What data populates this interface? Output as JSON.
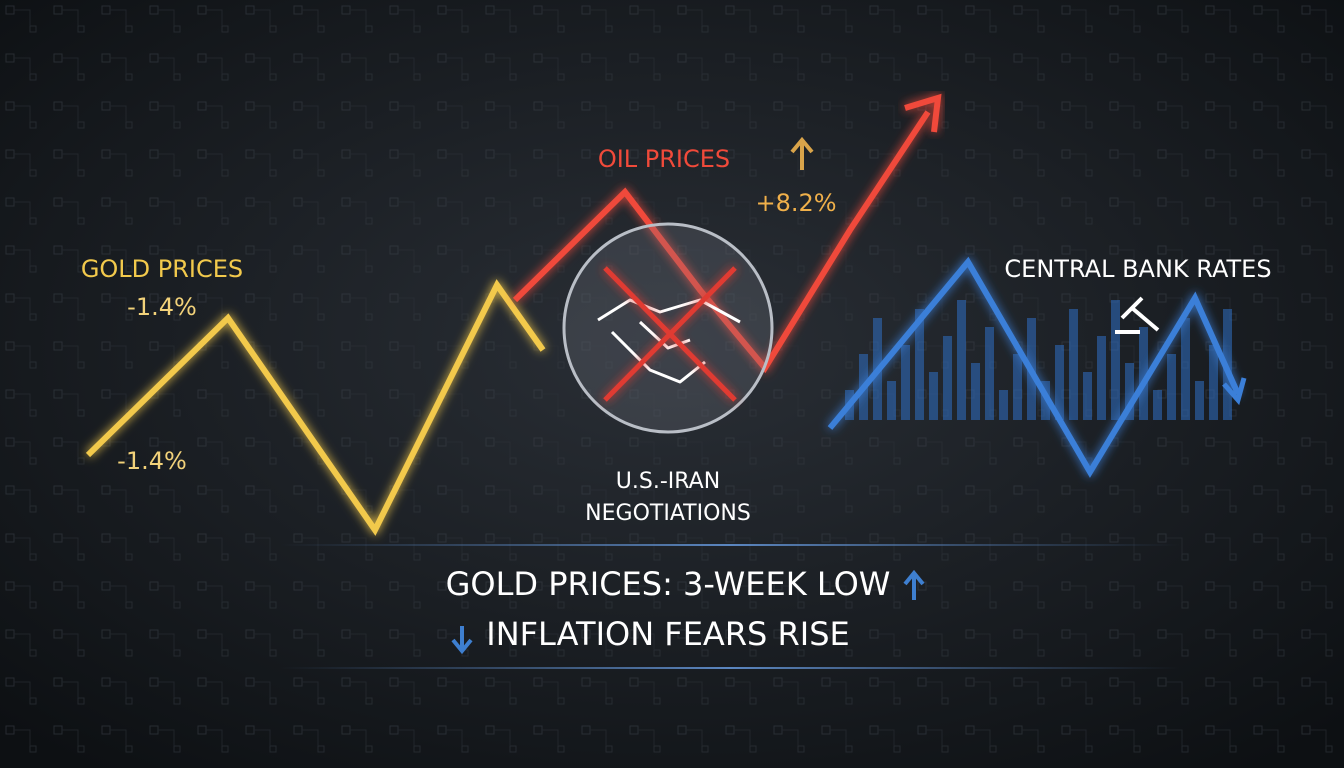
{
  "labels": {
    "gold": {
      "title": "GOLD PRICES",
      "change_top": "-1.4%",
      "change_bottom": "-1.4%"
    },
    "oil": {
      "title": "OIL PRICES",
      "change": "+8.2%"
    },
    "central_bank": {
      "title": "CENTRAL BANK RATES"
    },
    "negotiations": {
      "lines": [
        "U.S.-IRAN",
        "NEGOTIATIONS"
      ]
    }
  },
  "headline": {
    "lines": [
      "GOLD PRICES: 3-WEEK LOW",
      "INFLATION FEARS RISE"
    ]
  }
}
